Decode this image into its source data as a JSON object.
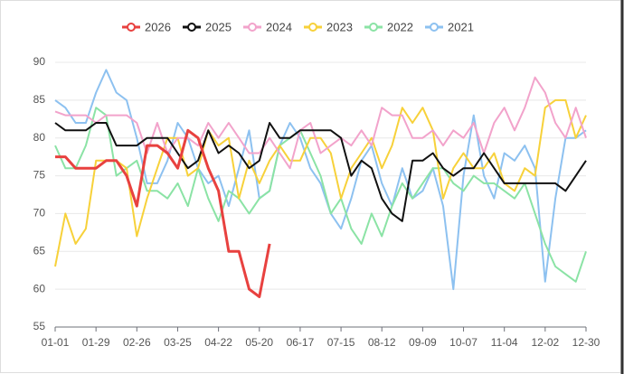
{
  "chart_data": {
    "type": "line",
    "categories": [
      "01-01",
      null,
      null,
      null,
      "01-29",
      null,
      null,
      null,
      "02-26",
      null,
      null,
      null,
      "03-25",
      null,
      null,
      null,
      "04-22",
      null,
      null,
      null,
      "05-20",
      null,
      null,
      null,
      "06-17",
      null,
      null,
      null,
      "07-15",
      null,
      null,
      null,
      "08-12",
      null,
      null,
      null,
      "09-09",
      null,
      null,
      null,
      "10-07",
      null,
      null,
      null,
      "11-04",
      null,
      null,
      null,
      "12-02",
      null,
      null,
      null,
      "12-30"
    ],
    "series": [
      {
        "name": "2026",
        "color": "#e8413f",
        "values": [
          77.5,
          77.5,
          76,
          76,
          76,
          77,
          77,
          75,
          71,
          79,
          79,
          78,
          76,
          81,
          80,
          76,
          73,
          65,
          65,
          60,
          59,
          66,
          null,
          null,
          null,
          null,
          null,
          null,
          null,
          null,
          null,
          null,
          null,
          null,
          null,
          null,
          null,
          null,
          null,
          null,
          null,
          null,
          null,
          null,
          null,
          null,
          null,
          null,
          null,
          null,
          null,
          null,
          null
        ]
      },
      {
        "name": "2025",
        "color": "#111111",
        "values": [
          82,
          81,
          81,
          81,
          82,
          82,
          79,
          79,
          79,
          80,
          80,
          80,
          78,
          76,
          77,
          81,
          78,
          79,
          78,
          76,
          77,
          82,
          80,
          80,
          81,
          81,
          81,
          81,
          80,
          75,
          77,
          76,
          72,
          70,
          69,
          77,
          77,
          78,
          76,
          75,
          76,
          76,
          78,
          76,
          74,
          74,
          74,
          74,
          74,
          74,
          73,
          75,
          77
        ]
      },
      {
        "name": "2024",
        "color": "#f2a3cb",
        "values": [
          83.5,
          83,
          83,
          83,
          82,
          83,
          83,
          83,
          82,
          78,
          82,
          78,
          80,
          80,
          79,
          82,
          80,
          82,
          80,
          78,
          78,
          80,
          78,
          76,
          81,
          82,
          78,
          79,
          80,
          79,
          81,
          79,
          84,
          83,
          83,
          80,
          80,
          81,
          79,
          81,
          80,
          82,
          78,
          82,
          84,
          81,
          84,
          88,
          86,
          82,
          80,
          84,
          80
        ]
      },
      {
        "name": "2023",
        "color": "#f7d13a",
        "values": [
          63,
          70,
          66,
          68,
          77,
          77,
          77,
          76,
          67,
          72,
          76,
          80,
          80,
          75,
          76,
          81,
          79,
          80,
          72,
          77,
          74,
          77,
          79,
          77,
          77,
          80,
          80,
          78,
          72,
          76,
          78,
          80,
          76,
          79,
          84,
          82,
          84,
          81,
          72,
          76,
          78,
          76,
          76,
          78,
          74,
          73,
          76,
          75,
          84,
          85,
          85,
          80,
          83
        ]
      },
      {
        "name": "2022",
        "color": "#8be3a5",
        "values": [
          79,
          76,
          76,
          79,
          84,
          83,
          75,
          76,
          77,
          73,
          73,
          72,
          74,
          71,
          76,
          72,
          69,
          73,
          72,
          70,
          72,
          73,
          79,
          80,
          81,
          78,
          75,
          70,
          72,
          68,
          66,
          70,
          67,
          71,
          74,
          72,
          74,
          76,
          76,
          74,
          73,
          75,
          74,
          74,
          73,
          72,
          74,
          70,
          66,
          63,
          62,
          61,
          65
        ]
      },
      {
        "name": "2021",
        "color": "#8dc1f0",
        "values": [
          85,
          84,
          82,
          82,
          86,
          89,
          86,
          85,
          80,
          74,
          74,
          77,
          82,
          80,
          76,
          74,
          75,
          71,
          76,
          81,
          72,
          73,
          79,
          82,
          80,
          76,
          74,
          70,
          68,
          72,
          77,
          79,
          74,
          71,
          76,
          72,
          73,
          76,
          71,
          60,
          75,
          83,
          75,
          72,
          78,
          77,
          79,
          76,
          61,
          72,
          80,
          80,
          81
        ]
      }
    ],
    "ylim": [
      55,
      90
    ],
    "yticks": [
      55,
      60,
      65,
      70,
      75,
      80,
      85,
      90
    ],
    "grid": true,
    "legend": "top"
  }
}
